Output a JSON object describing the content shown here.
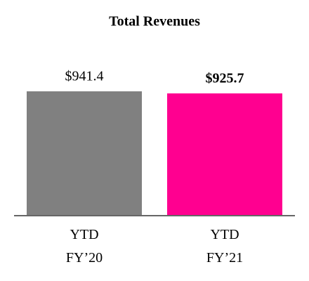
{
  "chart_data": {
    "type": "bar",
    "title": "Total Revenues",
    "categories": [
      "YTD\nFY’20",
      "YTD\nFY’21"
    ],
    "values": [
      941.4,
      925.7
    ],
    "value_labels": [
      "$941.4",
      "$925.7"
    ],
    "value_label_bold": [
      false,
      true
    ],
    "colors": [
      "#808080",
      "#ff0090"
    ]
  }
}
